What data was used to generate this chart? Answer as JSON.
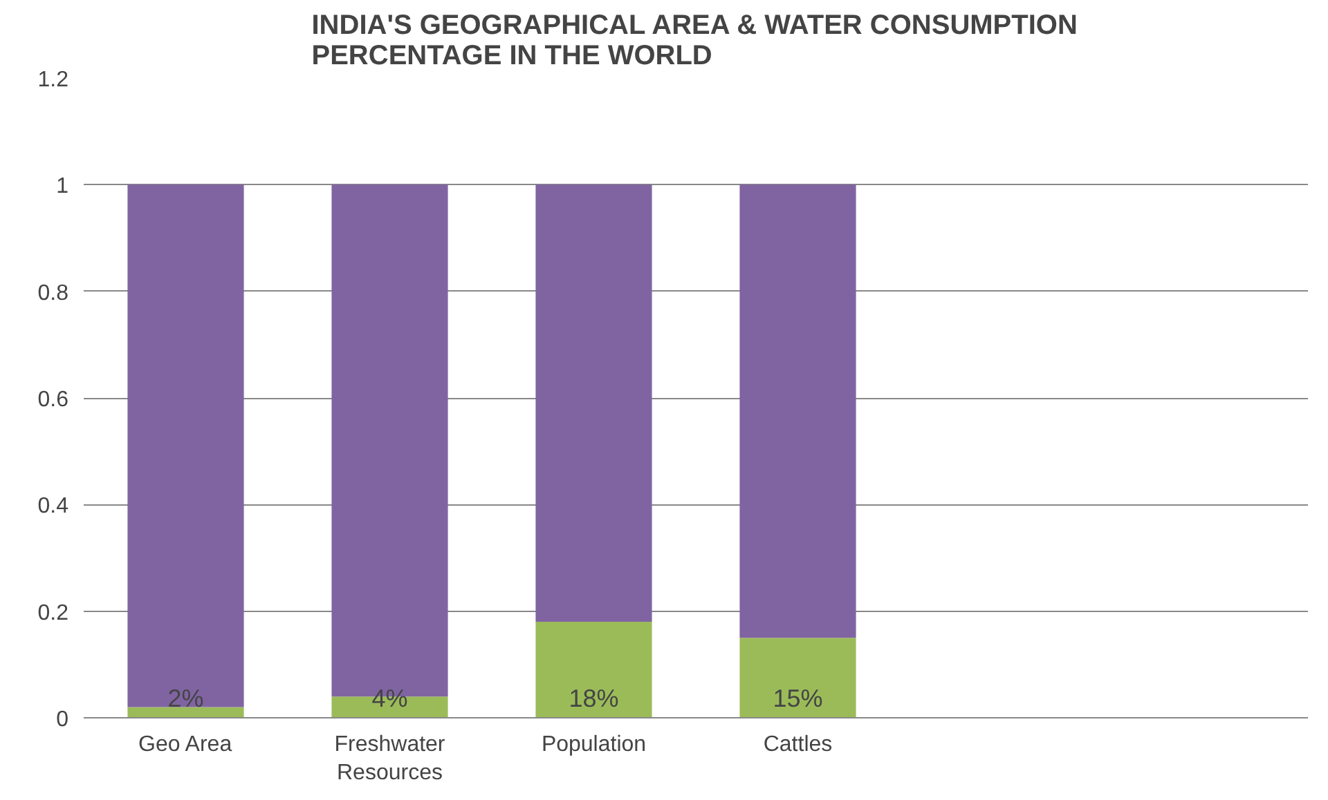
{
  "chart_data": {
    "type": "bar",
    "stacked": true,
    "title": "INDIA'S GEOGRAPHICAL AREA & WATER CONSUMPTION PERCENTAGE IN THE WORLD",
    "categories": [
      "Geo Area",
      "Freshwater Resources",
      "Population",
      "Cattles",
      null,
      null
    ],
    "series": [
      {
        "color": "#9bbb59",
        "values": [
          0.02,
          0.04,
          0.18,
          0.15,
          null,
          null
        ],
        "value_labels": [
          "2%",
          "4%",
          "18%",
          "15%",
          null,
          null
        ]
      },
      {
        "color": "#8064a2",
        "values": [
          0.98,
          0.96,
          0.82,
          0.85,
          null,
          null
        ]
      }
    ],
    "ylim": [
      0,
      1.2
    ],
    "yticks": [
      0,
      0.2,
      0.4,
      0.6,
      0.8,
      1,
      1.2
    ],
    "grid": "y"
  }
}
